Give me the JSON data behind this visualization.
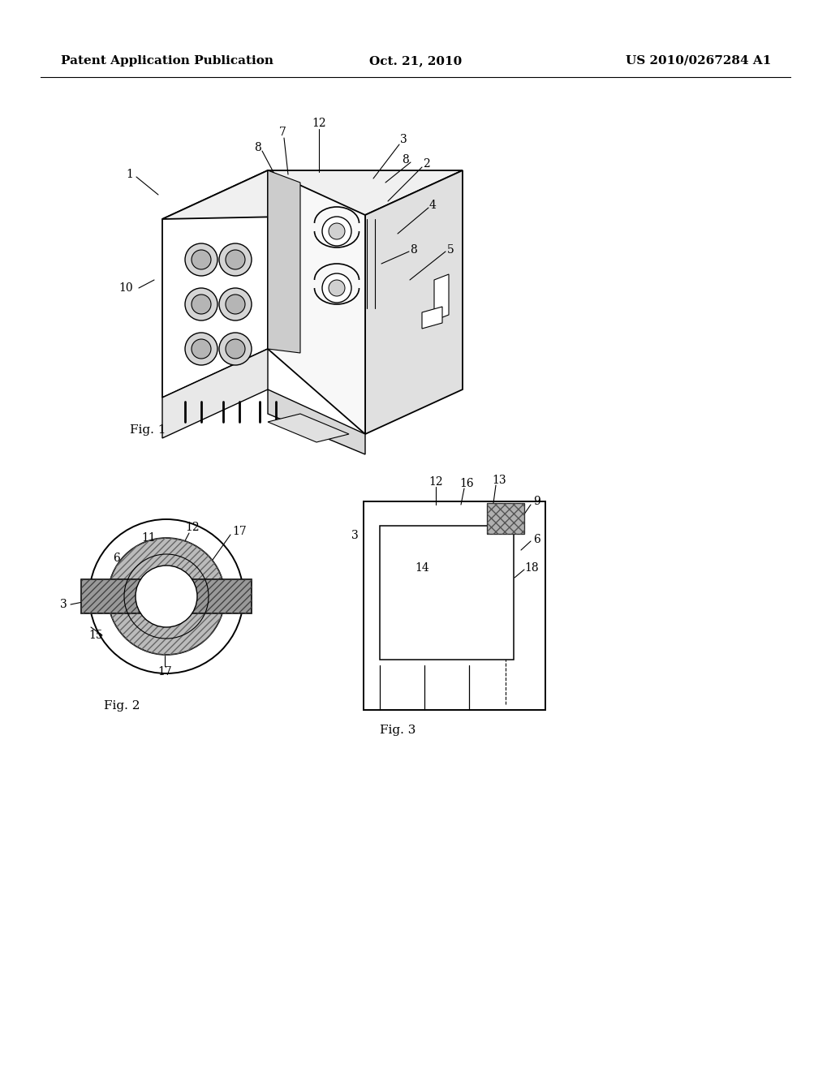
{
  "bg_color": "#ffffff",
  "header_left": "Patent Application Publication",
  "header_center": "Oct. 21, 2010",
  "header_right": "US 2010/0267284 A1",
  "header_fontsize": 11,
  "line_color": "#000000",
  "line_width": 1.2
}
